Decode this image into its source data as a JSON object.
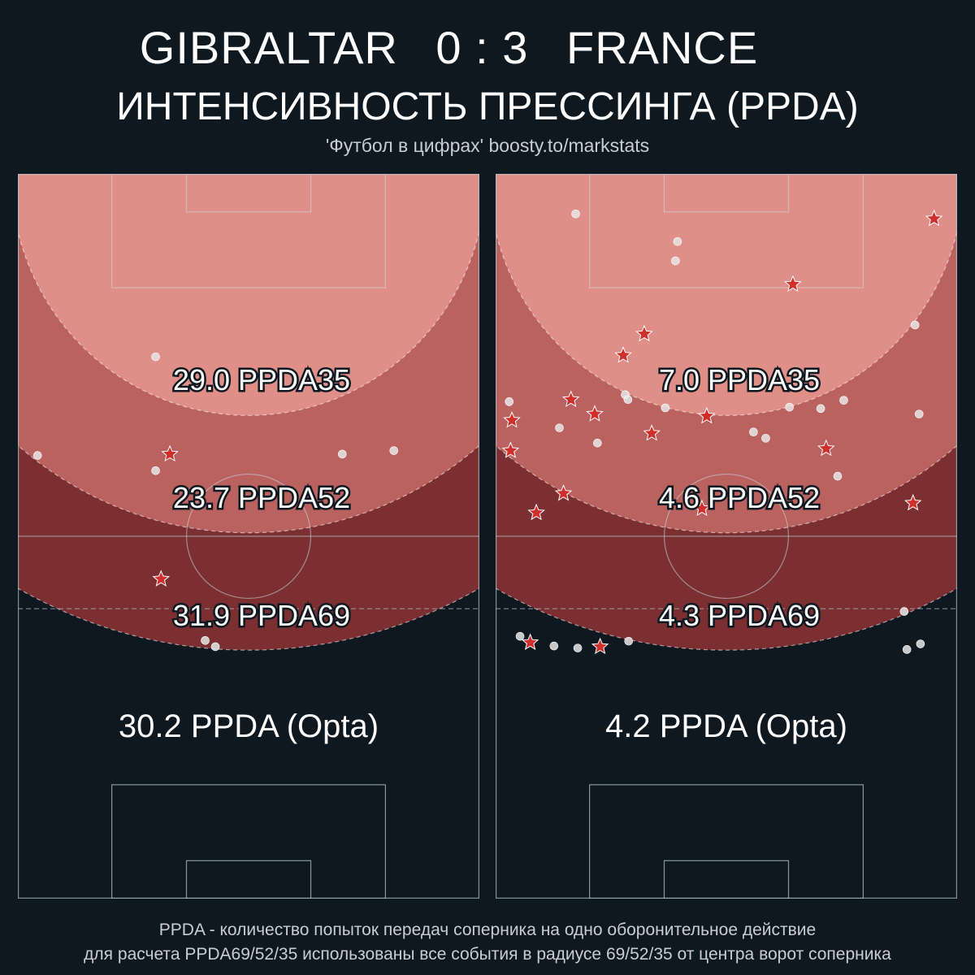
{
  "header": {
    "home_team": "GIBRALTAR",
    "home_score": "0",
    "separator": ":",
    "away_score": "3",
    "away_team": "FRANCE",
    "title": "ИНТЕНСИВНОСТЬ ПРЕССИНГА (PPDA)",
    "subtitle": "'Футбол в цифрах' boosty.to/markstats"
  },
  "footer": {
    "line1": "PPDA - количество попыток передач соперника на одно оборонительное действие",
    "line2": "для расчета PPDA69/52/35 использованы все события в радиусе 69/52/35 от центра ворот соперника"
  },
  "colors": {
    "background": "#0e1820",
    "zone35": "#e08f88",
    "zone52": "#b9625f",
    "zone69": "#7b2f31",
    "star": "#d0302c",
    "dot": "#e6e6e6",
    "line": "#9aa7ad"
  },
  "chart_data": [
    {
      "type": "scatter",
      "team": "GIBRALTAR",
      "zones": [
        {
          "label": "29.0 PPDA35",
          "radius": 35
        },
        {
          "label": "23.7 PPDA52",
          "radius": 52
        },
        {
          "label": "31.9 PPDA69",
          "radius": 69
        }
      ],
      "opta_label": "30.2 PPDA (Opta)",
      "xlim": [
        0,
        68
      ],
      "ylim": [
        0,
        105
      ],
      "series": [
        {
          "marker": "star",
          "points": [
            [
              22.4,
              64.4
            ],
            [
              21.1,
              46.3
            ]
          ]
        },
        {
          "marker": "dot",
          "points": [
            [
              20.3,
              78.5
            ],
            [
              2.9,
              64.2
            ],
            [
              20.3,
              62.0
            ],
            [
              47.8,
              64.4
            ],
            [
              55.4,
              64.9
            ],
            [
              27.6,
              37.4
            ],
            [
              29.1,
              36.5
            ]
          ]
        }
      ]
    },
    {
      "type": "scatter",
      "team": "FRANCE",
      "zones": [
        {
          "label": "7.0 PPDA35",
          "radius": 35
        },
        {
          "label": "4.6 PPDA52",
          "radius": 52
        },
        {
          "label": "4.3 PPDA69",
          "radius": 69
        }
      ],
      "opta_label": "4.2 PPDA (Opta)",
      "xlim": [
        0,
        68
      ],
      "ylim": [
        0,
        105
      ],
      "series": [
        {
          "marker": "star",
          "points": [
            [
              64.6,
              98.5
            ],
            [
              43.8,
              89.0
            ],
            [
              21.9,
              81.8
            ],
            [
              18.8,
              78.7
            ],
            [
              11.1,
              72.3
            ],
            [
              14.6,
              70.2
            ],
            [
              2.4,
              69.3
            ],
            [
              23.0,
              67.4
            ],
            [
              31.1,
              69.9
            ],
            [
              2.2,
              64.9
            ],
            [
              48.7,
              65.2
            ],
            [
              10.0,
              58.7
            ],
            [
              6.0,
              55.9
            ],
            [
              61.5,
              57.3
            ],
            [
              30.4,
              56.5
            ],
            [
              5.1,
              37.1
            ],
            [
              15.4,
              36.5
            ]
          ]
        },
        {
          "marker": "dot",
          "points": [
            [
              11.8,
              99.2
            ],
            [
              26.8,
              95.2
            ],
            [
              26.5,
              92.4
            ],
            [
              61.8,
              83.1
            ],
            [
              19.1,
              73.0
            ],
            [
              19.5,
              72.3
            ],
            [
              2.0,
              72.0
            ],
            [
              25.0,
              71.1
            ],
            [
              43.3,
              71.2
            ],
            [
              47.9,
              71.0
            ],
            [
              51.3,
              72.2
            ],
            [
              62.4,
              70.2
            ],
            [
              9.4,
              68.2
            ],
            [
              38.0,
              67.6
            ],
            [
              39.8,
              66.7
            ],
            [
              15.0,
              66.0
            ],
            [
              50.4,
              61.2
            ],
            [
              3.6,
              38.0
            ],
            [
              8.6,
              36.6
            ],
            [
              12.1,
              36.3
            ],
            [
              19.6,
              37.3
            ],
            [
              60.2,
              41.6
            ],
            [
              60.6,
              36.1
            ],
            [
              62.6,
              36.9
            ]
          ]
        }
      ]
    }
  ]
}
